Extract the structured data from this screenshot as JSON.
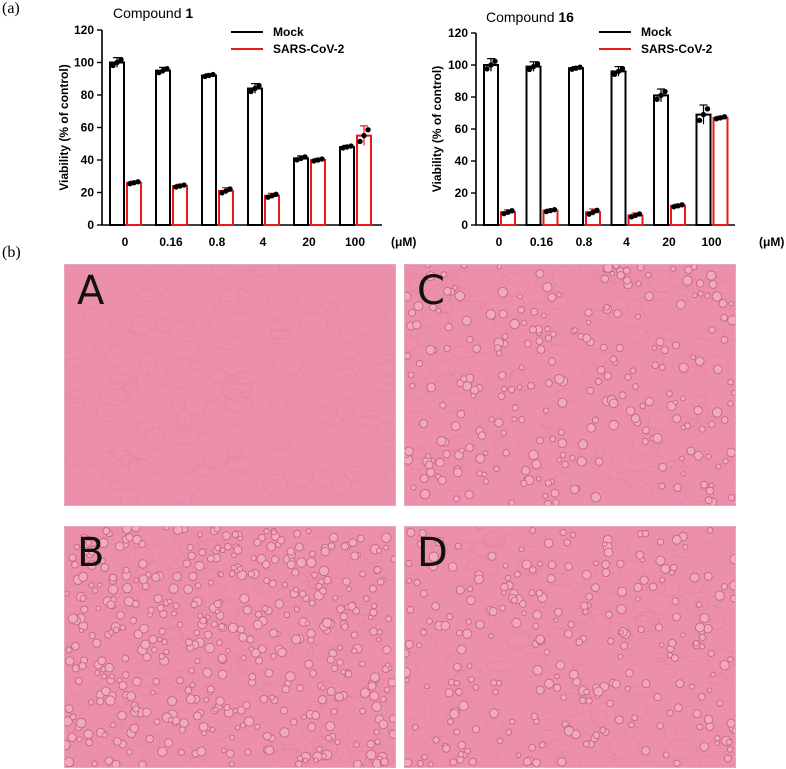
{
  "panel_labels": {
    "a": "(a)",
    "b": "(b)"
  },
  "colors": {
    "mock": "#000000",
    "infected": "#e8191a",
    "micro_bg": "#ec8faa",
    "micro_cell": "#c66784"
  },
  "chart_data": [
    {
      "type": "bar",
      "title_text": "Compound ",
      "title_bold": "1",
      "ylabel": "Viability (% of control)",
      "unit": "(μM)",
      "categories": [
        "0",
        "0.16",
        "0.8",
        "4",
        "20",
        "100"
      ],
      "ylim": [
        0,
        120
      ],
      "yticks": [
        0,
        20,
        40,
        60,
        80,
        100,
        120
      ],
      "legend": "top-right",
      "series": [
        {
          "name": "Mock",
          "values": [
            100,
            95,
            92,
            84,
            41,
            48
          ],
          "errors": [
            3,
            2,
            1,
            3,
            1.5,
            1
          ]
        },
        {
          "name": "SARS-CoV-2",
          "values": [
            26,
            24,
            21,
            18,
            40,
            55
          ],
          "errors": [
            1,
            1,
            2,
            1.5,
            1,
            6
          ]
        }
      ]
    },
    {
      "type": "bar",
      "title_text": "Compound ",
      "title_bold": "16",
      "ylabel": "Viability (% of control)",
      "unit": "(μM)",
      "categories": [
        "0",
        "0.16",
        "0.8",
        "4",
        "20",
        "100"
      ],
      "ylim": [
        0,
        120
      ],
      "yticks": [
        0,
        20,
        40,
        60,
        80,
        100,
        120
      ],
      "legend": "top-right",
      "series": [
        {
          "name": "Mock",
          "values": [
            100,
            99,
            98,
            96,
            81,
            69
          ],
          "errors": [
            4,
            3,
            1,
            3,
            4,
            6
          ]
        },
        {
          "name": "SARS-CoV-2",
          "values": [
            8,
            9,
            8,
            6,
            12,
            67
          ],
          "errors": [
            1.5,
            1,
            2,
            1.5,
            1,
            1
          ]
        }
      ]
    }
  ],
  "micrographs": [
    {
      "letter": "A",
      "density": "confluent"
    },
    {
      "letter": "C",
      "density": "medium"
    },
    {
      "letter": "B",
      "density": "high"
    },
    {
      "letter": "D",
      "density": "medium"
    }
  ]
}
